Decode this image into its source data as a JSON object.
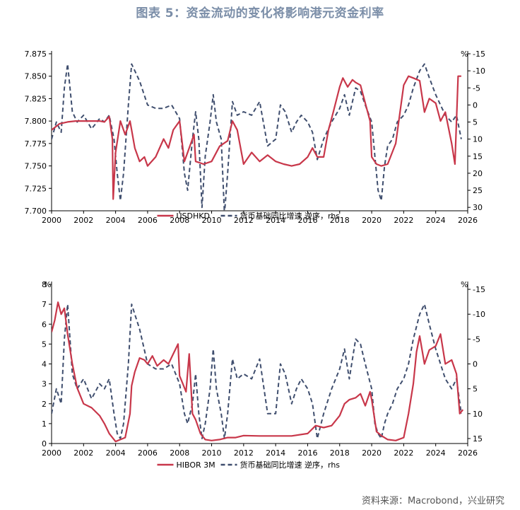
{
  "title": "图表 5：资金流动的变化将影响港元资金利率",
  "source": "资料来源：Macrobond，兴业研究",
  "colors": {
    "red": "#c8374a",
    "navy": "#3f4e6e",
    "title": "#7b8ea8"
  },
  "chart_data": [
    {
      "type": "line",
      "unit_left": "",
      "unit_right": "%",
      "x_ticks": [
        "2000",
        "2002",
        "2004",
        "2006",
        "2008",
        "2010",
        "2012",
        "2014",
        "2016",
        "2018",
        "2020",
        "2022",
        "2024",
        "2026"
      ],
      "y_left_ticks": [
        "7.700",
        "7.725",
        "7.750",
        "7.775",
        "7.800",
        "7.825",
        "7.850",
        "7.875"
      ],
      "y_right_ticks": [
        "-15",
        "-10",
        "-5",
        "0",
        "5",
        "10",
        "15",
        "20",
        "25",
        "30"
      ],
      "ylim_left": [
        7.7,
        7.875
      ],
      "ylim_right_inverted": [
        -15,
        31
      ],
      "xlim": [
        2000,
        2026
      ],
      "legend": [
        "USDHKD",
        "货币基础同比增速 逆序，rhs"
      ],
      "series": [
        {
          "name": "USDHKD",
          "axis": "left",
          "color": "#c8374a",
          "style": "solid",
          "x": [
            2000,
            2000.5,
            2001,
            2001.5,
            2002,
            2002.5,
            2003,
            2003.3,
            2003.6,
            2003.8,
            2003.85,
            2004,
            2004.3,
            2004.6,
            2004.9,
            2005,
            2005.2,
            2005.5,
            2005.8,
            2006,
            2006.5,
            2007,
            2007.3,
            2007.6,
            2008,
            2008.3,
            2008.6,
            2008.9,
            2009,
            2009.5,
            2010,
            2010.5,
            2011,
            2011.3,
            2011.6,
            2012,
            2012.5,
            2013,
            2013.5,
            2014,
            2014.5,
            2015,
            2015.5,
            2016,
            2016.3,
            2016.6,
            2017,
            2017.3,
            2017.6,
            2018,
            2018.2,
            2018.5,
            2018.8,
            2019,
            2019.3,
            2019.6,
            2019.9,
            2020,
            2020.3,
            2020.6,
            2021,
            2021.5,
            2022,
            2022.3,
            2022.6,
            2023,
            2023.3,
            2023.6,
            2024,
            2024.3,
            2024.6,
            2025,
            2025.2,
            2025.4,
            2025.6
          ],
          "values": [
            7.79,
            7.797,
            7.799,
            7.8,
            7.8,
            7.8,
            7.8,
            7.799,
            7.805,
            7.78,
            7.713,
            7.765,
            7.8,
            7.785,
            7.8,
            7.79,
            7.77,
            7.755,
            7.76,
            7.75,
            7.76,
            7.78,
            7.77,
            7.79,
            7.8,
            7.755,
            7.77,
            7.785,
            7.755,
            7.752,
            7.755,
            7.772,
            7.778,
            7.8,
            7.79,
            7.752,
            7.765,
            7.755,
            7.762,
            7.755,
            7.752,
            7.75,
            7.752,
            7.76,
            7.77,
            7.76,
            7.76,
            7.79,
            7.81,
            7.838,
            7.848,
            7.838,
            7.846,
            7.843,
            7.84,
            7.82,
            7.8,
            7.76,
            7.752,
            7.75,
            7.752,
            7.775,
            7.84,
            7.85,
            7.848,
            7.845,
            7.81,
            7.825,
            7.82,
            7.8,
            7.81,
            7.775,
            7.752,
            7.85,
            7.85
          ]
        },
        {
          "name": "货币基础同比增速 逆序，rhs",
          "axis": "right",
          "color": "#3f4e6e",
          "style": "dashed",
          "x": [
            2000,
            2000.3,
            2000.6,
            2000.8,
            2001,
            2001.3,
            2001.6,
            2002,
            2002.5,
            2003,
            2003.3,
            2003.6,
            2003.9,
            2004.1,
            2004.3,
            2004.5,
            2004.8,
            2005,
            2005.2,
            2005.5,
            2006,
            2006.5,
            2007,
            2007.5,
            2008,
            2008.3,
            2008.5,
            2008.8,
            2009,
            2009.2,
            2009.4,
            2009.6,
            2009.9,
            2010.1,
            2010.3,
            2010.6,
            2010.8,
            2011,
            2011.3,
            2011.6,
            2012,
            2012.5,
            2013,
            2013.5,
            2014,
            2014.3,
            2014.6,
            2015,
            2015.3,
            2015.6,
            2016,
            2016.3,
            2016.6,
            2017,
            2017.5,
            2018,
            2018.3,
            2018.6,
            2019,
            2019.3,
            2019.6,
            2020,
            2020.2,
            2020.4,
            2020.6,
            2020.8,
            2021,
            2021.3,
            2021.6,
            2022,
            2022.3,
            2022.6,
            2023,
            2023.3,
            2023.6,
            2024,
            2024.3,
            2024.6,
            2025,
            2025.3,
            2025.6
          ],
          "values": [
            10,
            5,
            8,
            -5,
            -12,
            2,
            5,
            3,
            7,
            4,
            5,
            3,
            10,
            20,
            28,
            20,
            0,
            -12,
            -10,
            -7,
            0,
            1,
            1,
            0,
            4,
            20,
            25,
            10,
            2,
            10,
            30,
            15,
            5,
            -3,
            5,
            10,
            32,
            20,
            -1,
            3,
            2,
            3,
            -1,
            12,
            10,
            0,
            2,
            8,
            5,
            3,
            5,
            8,
            16,
            10,
            5,
            1,
            -3,
            3,
            -5,
            -4,
            0,
            5,
            15,
            25,
            28,
            18,
            12,
            10,
            5,
            3,
            0,
            -5,
            -10,
            -12,
            -8,
            -3,
            0,
            3,
            5,
            3,
            10
          ]
        }
      ]
    },
    {
      "type": "line",
      "unit_left": "%",
      "unit_right": "%",
      "x_ticks": [
        "2000",
        "2002",
        "2004",
        "2006",
        "2008",
        "2010",
        "2012",
        "2014",
        "2016",
        "2018",
        "2020",
        "2022",
        "2024",
        "2026"
      ],
      "y_left_ticks": [
        "0",
        "1",
        "2",
        "3",
        "4",
        "5",
        "6",
        "7",
        "8"
      ],
      "y_right_ticks": [
        "-15",
        "-10",
        "-5",
        "0",
        "5",
        "10",
        "15"
      ],
      "ylim_left": [
        0,
        8
      ],
      "ylim_right_inverted": [
        -16,
        16
      ],
      "xlim": [
        2000,
        2026
      ],
      "legend": [
        "HIBOR 3M",
        "货币基础同比增速 逆序，rhs"
      ],
      "series": [
        {
          "name": "HIBOR 3M",
          "axis": "left",
          "color": "#c8374a",
          "style": "solid",
          "x": [
            2000,
            2000.2,
            2000.4,
            2000.6,
            2000.8,
            2001,
            2001.3,
            2001.6,
            2002,
            2002.5,
            2003,
            2003.3,
            2003.6,
            2004,
            2004.3,
            2004.6,
            2004.9,
            2005,
            2005.2,
            2005.5,
            2005.8,
            2006,
            2006.3,
            2006.6,
            2007,
            2007.3,
            2007.6,
            2007.9,
            2008,
            2008.2,
            2008.4,
            2008.6,
            2008.8,
            2009,
            2009.3,
            2009.6,
            2010,
            2010.5,
            2011,
            2011.5,
            2012,
            2013,
            2014,
            2015,
            2016,
            2016.5,
            2017,
            2017.5,
            2018,
            2018.3,
            2018.6,
            2019,
            2019.3,
            2019.6,
            2019.9,
            2020,
            2020.3,
            2020.6,
            2021,
            2021.5,
            2022,
            2022.3,
            2022.6,
            2022.8,
            2023,
            2023.3,
            2023.6,
            2024,
            2024.3,
            2024.6,
            2025,
            2025.3,
            2025.5,
            2025.7
          ],
          "values": [
            5.6,
            6.2,
            7.1,
            6.5,
            6.8,
            5.5,
            4.0,
            2.8,
            2.0,
            1.8,
            1.4,
            1.0,
            0.5,
            0.1,
            0.2,
            0.3,
            1.5,
            2.9,
            3.6,
            4.3,
            4.2,
            4.0,
            4.4,
            3.9,
            4.2,
            4.0,
            4.5,
            5.0,
            3.4,
            3.0,
            2.6,
            4.5,
            1.5,
            1.2,
            0.5,
            0.2,
            0.15,
            0.2,
            0.3,
            0.3,
            0.4,
            0.38,
            0.38,
            0.38,
            0.5,
            0.9,
            0.8,
            0.9,
            1.4,
            2.0,
            2.2,
            2.3,
            2.5,
            1.9,
            2.6,
            2.2,
            0.6,
            0.4,
            0.2,
            0.15,
            0.3,
            1.5,
            3.0,
            4.6,
            5.4,
            4.0,
            4.7,
            4.9,
            5.5,
            4.0,
            4.2,
            3.5,
            1.5,
            1.7
          ]
        },
        {
          "name": "货币基础同比增速 逆序，rhs",
          "axis": "right",
          "color": "#3f4e6e",
          "style": "dashed",
          "x": [
            2000,
            2000.3,
            2000.6,
            2000.8,
            2001,
            2001.3,
            2001.6,
            2002,
            2002.5,
            2003,
            2003.3,
            2003.6,
            2003.9,
            2004.1,
            2004.3,
            2004.5,
            2004.8,
            2005,
            2005.2,
            2005.5,
            2006,
            2006.5,
            2007,
            2007.5,
            2008,
            2008.3,
            2008.5,
            2008.8,
            2009,
            2009.2,
            2009.4,
            2009.6,
            2009.9,
            2010.1,
            2010.3,
            2010.6,
            2010.8,
            2011,
            2011.3,
            2011.6,
            2012,
            2012.5,
            2013,
            2013.5,
            2014,
            2014.3,
            2014.6,
            2015,
            2015.3,
            2015.6,
            2016,
            2016.3,
            2016.6,
            2017,
            2017.5,
            2018,
            2018.3,
            2018.6,
            2019,
            2019.3,
            2019.6,
            2020,
            2020.2,
            2020.4,
            2020.6,
            2020.8,
            2021,
            2021.3,
            2021.6,
            2022,
            2022.3,
            2022.6,
            2023,
            2023.3,
            2023.6,
            2024,
            2024.3,
            2024.6,
            2025,
            2025.3,
            2025.6
          ],
          "values": [
            10,
            5,
            8,
            -5,
            -12,
            2,
            5,
            3,
            7,
            4,
            5,
            3,
            10,
            14,
            15,
            12,
            0,
            -12,
            -10,
            -7,
            0,
            1,
            1,
            0,
            4,
            10,
            12,
            8,
            2,
            10,
            15,
            12,
            5,
            -3,
            5,
            10,
            15,
            10,
            -1,
            3,
            2,
            3,
            -1,
            10,
            10,
            0,
            2,
            8,
            5,
            3,
            5,
            8,
            15,
            10,
            5,
            1,
            -3,
            3,
            -5,
            -4,
            0,
            5,
            12,
            14,
            15,
            12,
            10,
            8,
            5,
            3,
            0,
            -5,
            -10,
            -12,
            -8,
            -3,
            0,
            3,
            5,
            3,
            10
          ]
        }
      ]
    }
  ]
}
